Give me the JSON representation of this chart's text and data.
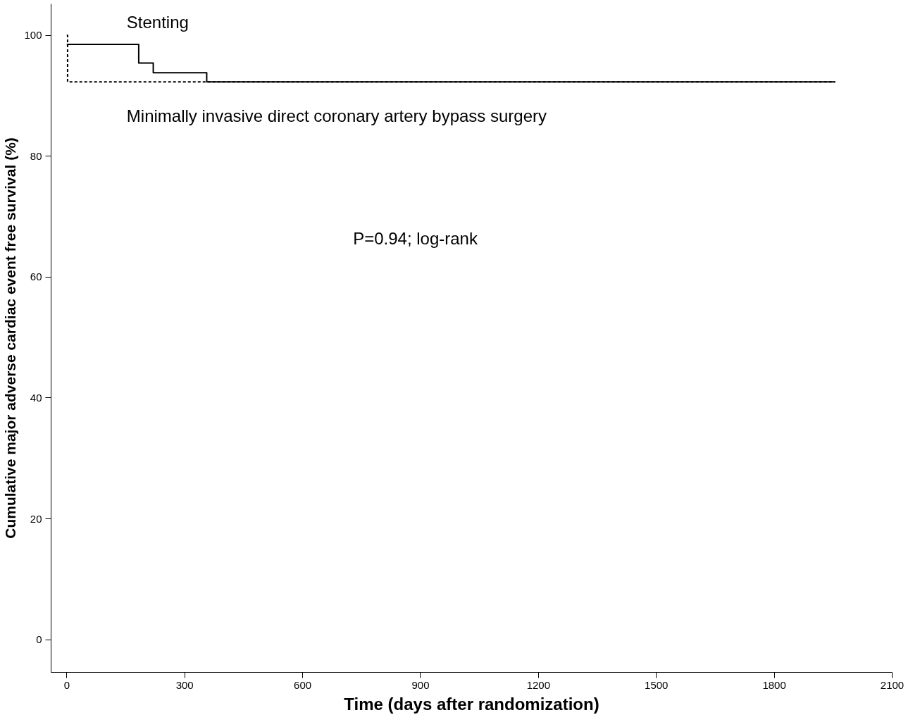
{
  "chart_data": {
    "type": "step",
    "xlabel": "Time (days after randomization)",
    "ylabel": "Cumulative major adverse cardiac event free survival (%)",
    "xlim": [
      -40,
      2100
    ],
    "ylim": [
      -5.4,
      105.2
    ],
    "xticks": [
      0,
      300,
      600,
      900,
      1200,
      1500,
      1800,
      2100
    ],
    "yticks": [
      0,
      20,
      40,
      60,
      80,
      100
    ],
    "grid": false,
    "series": [
      {
        "name": "Stenting",
        "color": "#000000",
        "line_style": "solid",
        "x": [
          0,
          183,
          220,
          356,
          1955
        ],
        "values": [
          98.5,
          95.4,
          93.8,
          92.3,
          92.3
        ]
      },
      {
        "name": "Minimally invasive direct coronary artery bypass surgery",
        "color": "#000000",
        "line_style": "dotted",
        "x": [
          0,
          2,
          1955
        ],
        "values": [
          100,
          92.3,
          92.3
        ]
      }
    ],
    "annotations": [
      "P=0.94; log-rank"
    ]
  }
}
